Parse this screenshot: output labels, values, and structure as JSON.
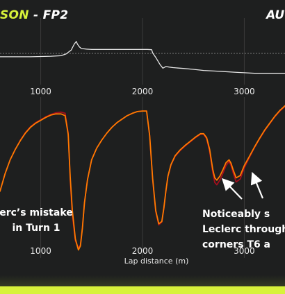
{
  "header": {
    "title_accent": "SON",
    "title_sep": " - ",
    "title_session": "FP2",
    "title_right": "AU"
  },
  "annotations": {
    "left": [
      "erc’s mistake",
      "in Turn 1"
    ],
    "right": [
      "Noticeably s",
      "Leclerc through",
      "corners T6 a"
    ]
  },
  "colors": {
    "background": "#1e1f1f",
    "accent": "#d7f23a",
    "driver_a": "#ff7a00",
    "driver_b": "#a50e1d",
    "delta_line": "#e6e6e6",
    "grid": "#3a3b3b",
    "arrow": "#ffffff"
  },
  "chart_data": [
    {
      "type": "line",
      "title": "",
      "xlabel": "",
      "ylabel": "",
      "xlim": [
        600,
        3400
      ],
      "ylim": [
        -1,
        1
      ],
      "x_ticks": [
        1000,
        2000,
        3000
      ],
      "x_tick_labels": [
        "1000",
        "2000",
        "3000"
      ],
      "reference_line": 0,
      "grid": true,
      "series": [
        {
          "color": "#e6e6e6",
          "x": [
            600,
            700,
            800,
            900,
            1000,
            1100,
            1200,
            1250,
            1300,
            1330,
            1350,
            1360,
            1380,
            1400,
            1450,
            1500,
            1600,
            1700,
            1800,
            1900,
            2000,
            2050,
            2090,
            2100,
            2130,
            2150,
            2170,
            2200,
            2230,
            2260,
            2300,
            2400,
            2500,
            2600,
            2700,
            2800,
            2900,
            3000,
            3100,
            3200,
            3300,
            3400
          ],
          "y": [
            -0.12,
            -0.12,
            -0.12,
            -0.12,
            -0.11,
            -0.1,
            -0.08,
            -0.02,
            0.12,
            0.33,
            0.42,
            0.33,
            0.23,
            0.17,
            0.15,
            0.14,
            0.14,
            0.14,
            0.14,
            0.14,
            0.14,
            0.14,
            0.13,
            0.02,
            -0.14,
            -0.26,
            -0.38,
            -0.52,
            -0.46,
            -0.48,
            -0.5,
            -0.53,
            -0.56,
            -0.6,
            -0.62,
            -0.64,
            -0.66,
            -0.68,
            -0.7,
            -0.7,
            -0.7,
            -0.7
          ]
        }
      ]
    },
    {
      "type": "line",
      "title": "",
      "xlabel": "Lap distance (m)",
      "ylabel": "",
      "xlim": [
        600,
        3400
      ],
      "ylim": [
        70,
        330
      ],
      "x_ticks": [
        1000,
        2000,
        3000
      ],
      "x_tick_labels": [
        "1000",
        "2000",
        "3000"
      ],
      "grid": true,
      "series": [
        {
          "color": "#a50e1d",
          "x": [
            600,
            650,
            700,
            750,
            800,
            850,
            900,
            950,
            1000,
            1050,
            1100,
            1150,
            1200,
            1240,
            1270,
            1290,
            1310,
            1340,
            1370,
            1390,
            1410,
            1430,
            1460,
            1500,
            1550,
            1600,
            1650,
            1700,
            1750,
            1800,
            1850,
            1900,
            1950,
            2000,
            2040,
            2070,
            2100,
            2130,
            2160,
            2190,
            2210,
            2230,
            2250,
            2280,
            2320,
            2370,
            2420,
            2470,
            2520,
            2570,
            2600,
            2630,
            2660,
            2690,
            2710,
            2730,
            2760,
            2790,
            2820,
            2850,
            2870,
            2890,
            2920,
            2960,
            3000,
            3050,
            3100,
            3150,
            3200,
            3250,
            3300,
            3350,
            3400
          ],
          "y": [
            180,
            210,
            234,
            252,
            268,
            281,
            291,
            298,
            303,
            308,
            312,
            315,
            316,
            314,
            280,
            200,
            140,
            95,
            82,
            88,
            118,
            160,
            200,
            234,
            254,
            268,
            280,
            290,
            298,
            304,
            310,
            314,
            317,
            318,
            318,
            275,
            200,
            145,
            122,
            127,
            150,
            180,
            205,
            225,
            240,
            250,
            258,
            265,
            272,
            278,
            278,
            270,
            248,
            213,
            195,
            191,
            199,
            211,
            224,
            231,
            224,
            212,
            196,
            201,
            220,
            238,
            255,
            270,
            284,
            296,
            308,
            318,
            326
          ]
        },
        {
          "color": "#ff7a00",
          "x": [
            600,
            650,
            700,
            750,
            800,
            850,
            900,
            950,
            1000,
            1050,
            1100,
            1150,
            1200,
            1240,
            1270,
            1290,
            1310,
            1340,
            1370,
            1390,
            1410,
            1430,
            1460,
            1500,
            1550,
            1600,
            1650,
            1700,
            1750,
            1800,
            1850,
            1900,
            1950,
            2000,
            2040,
            2070,
            2100,
            2130,
            2160,
            2190,
            2210,
            2230,
            2250,
            2280,
            2320,
            2370,
            2420,
            2470,
            2520,
            2570,
            2600,
            2630,
            2660,
            2690,
            2710,
            2730,
            2760,
            2790,
            2820,
            2850,
            2870,
            2890,
            2920,
            2960,
            3000,
            3050,
            3100,
            3150,
            3200,
            3250,
            3300,
            3350,
            3400
          ],
          "y": [
            180,
            210,
            234,
            252,
            267,
            280,
            290,
            297,
            302,
            307,
            311,
            313,
            313,
            310,
            278,
            205,
            148,
            98,
            79,
            86,
            117,
            160,
            200,
            234,
            254,
            268,
            280,
            290,
            298,
            304,
            310,
            314,
            317,
            318,
            318,
            276,
            202,
            147,
            124,
            128,
            151,
            181,
            206,
            226,
            241,
            251,
            259,
            266,
            273,
            279,
            279,
            272,
            252,
            218,
            203,
            199,
            206,
            217,
            229,
            234,
            228,
            217,
            203,
            207,
            224,
            240,
            256,
            271,
            285,
            297,
            309,
            319,
            327
          ]
        }
      ]
    }
  ]
}
